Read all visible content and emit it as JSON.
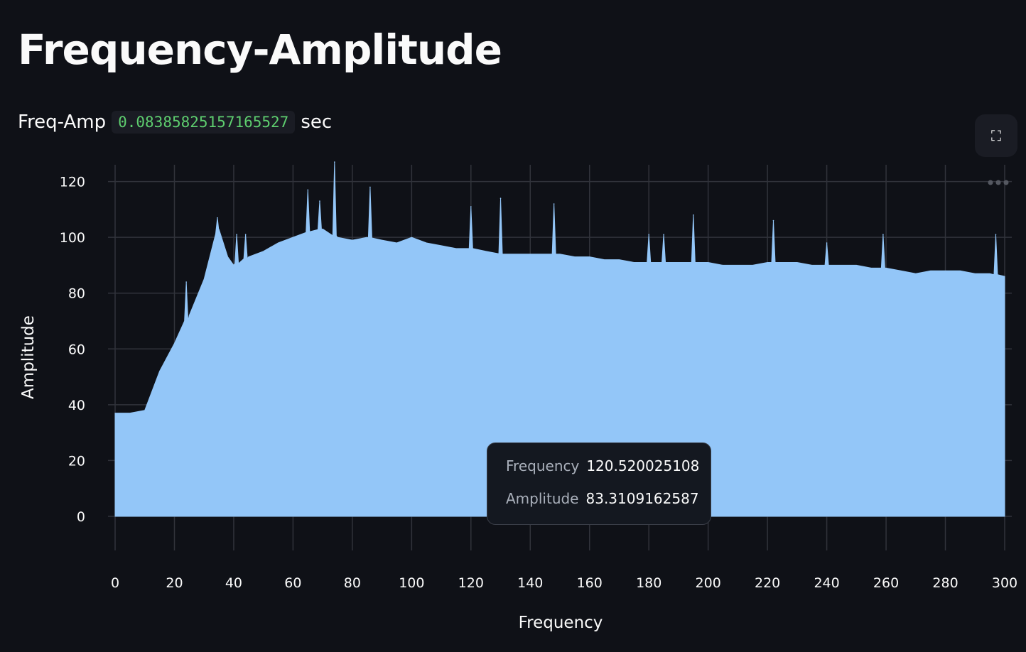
{
  "title": "Frequency-Amplitude",
  "subtitle": {
    "label": "Freq-Amp",
    "value": "0.08385825157165527",
    "unit": "sec"
  },
  "tooltip": {
    "rows": [
      {
        "key": "Frequency",
        "value": "120.520025108"
      },
      {
        "key": "Amplitude",
        "value": "83.3109162587"
      }
    ]
  },
  "colors": {
    "fill": "#93c6f8",
    "background": "#0f1117",
    "grid": "#31333b",
    "code": "#5ece6f"
  },
  "chart_data": {
    "type": "area",
    "xlabel": "Frequency",
    "ylabel": "Amplitude",
    "xlim": [
      0,
      300
    ],
    "ylim": [
      0,
      126
    ],
    "grid": true,
    "xticks": [
      0,
      20,
      40,
      60,
      80,
      100,
      120,
      140,
      160,
      180,
      200,
      220,
      240,
      260,
      280,
      300
    ],
    "yticks": [
      0,
      20,
      40,
      60,
      80,
      100,
      120
    ],
    "x": [
      0,
      5,
      10,
      15,
      20,
      25,
      30,
      35,
      38,
      40,
      45,
      50,
      55,
      60,
      65,
      70,
      75,
      80,
      85,
      90,
      95,
      100,
      105,
      110,
      115,
      120,
      125,
      130,
      135,
      140,
      145,
      150,
      155,
      160,
      165,
      170,
      175,
      180,
      185,
      190,
      195,
      200,
      205,
      210,
      215,
      220,
      225,
      230,
      235,
      240,
      245,
      250,
      255,
      260,
      265,
      270,
      275,
      280,
      285,
      290,
      295,
      300
    ],
    "y": [
      37,
      37,
      38,
      52,
      62,
      72,
      85,
      103,
      93,
      90,
      93,
      95,
      98,
      100,
      102,
      103,
      100,
      99,
      100,
      99,
      98,
      100,
      98,
      97,
      96,
      96,
      95,
      94,
      94,
      94,
      94,
      94,
      93,
      93,
      92,
      92,
      91,
      91,
      91,
      91,
      91,
      91,
      90,
      90,
      90,
      91,
      91,
      91,
      90,
      90,
      90,
      90,
      89,
      89,
      88,
      87,
      88,
      88,
      88,
      87,
      87,
      86
    ],
    "peaks": [
      {
        "x": 24,
        "y": 84
      },
      {
        "x": 34.5,
        "y": 107
      },
      {
        "x": 41,
        "y": 101
      },
      {
        "x": 44,
        "y": 101
      },
      {
        "x": 65,
        "y": 117
      },
      {
        "x": 69,
        "y": 113
      },
      {
        "x": 74,
        "y": 127
      },
      {
        "x": 86,
        "y": 118
      },
      {
        "x": 120,
        "y": 111
      },
      {
        "x": 130,
        "y": 114
      },
      {
        "x": 148,
        "y": 112
      },
      {
        "x": 180,
        "y": 101
      },
      {
        "x": 185,
        "y": 101
      },
      {
        "x": 195,
        "y": 108
      },
      {
        "x": 222,
        "y": 106
      },
      {
        "x": 240,
        "y": 98
      },
      {
        "x": 259,
        "y": 101
      },
      {
        "x": 297,
        "y": 101
      }
    ]
  }
}
